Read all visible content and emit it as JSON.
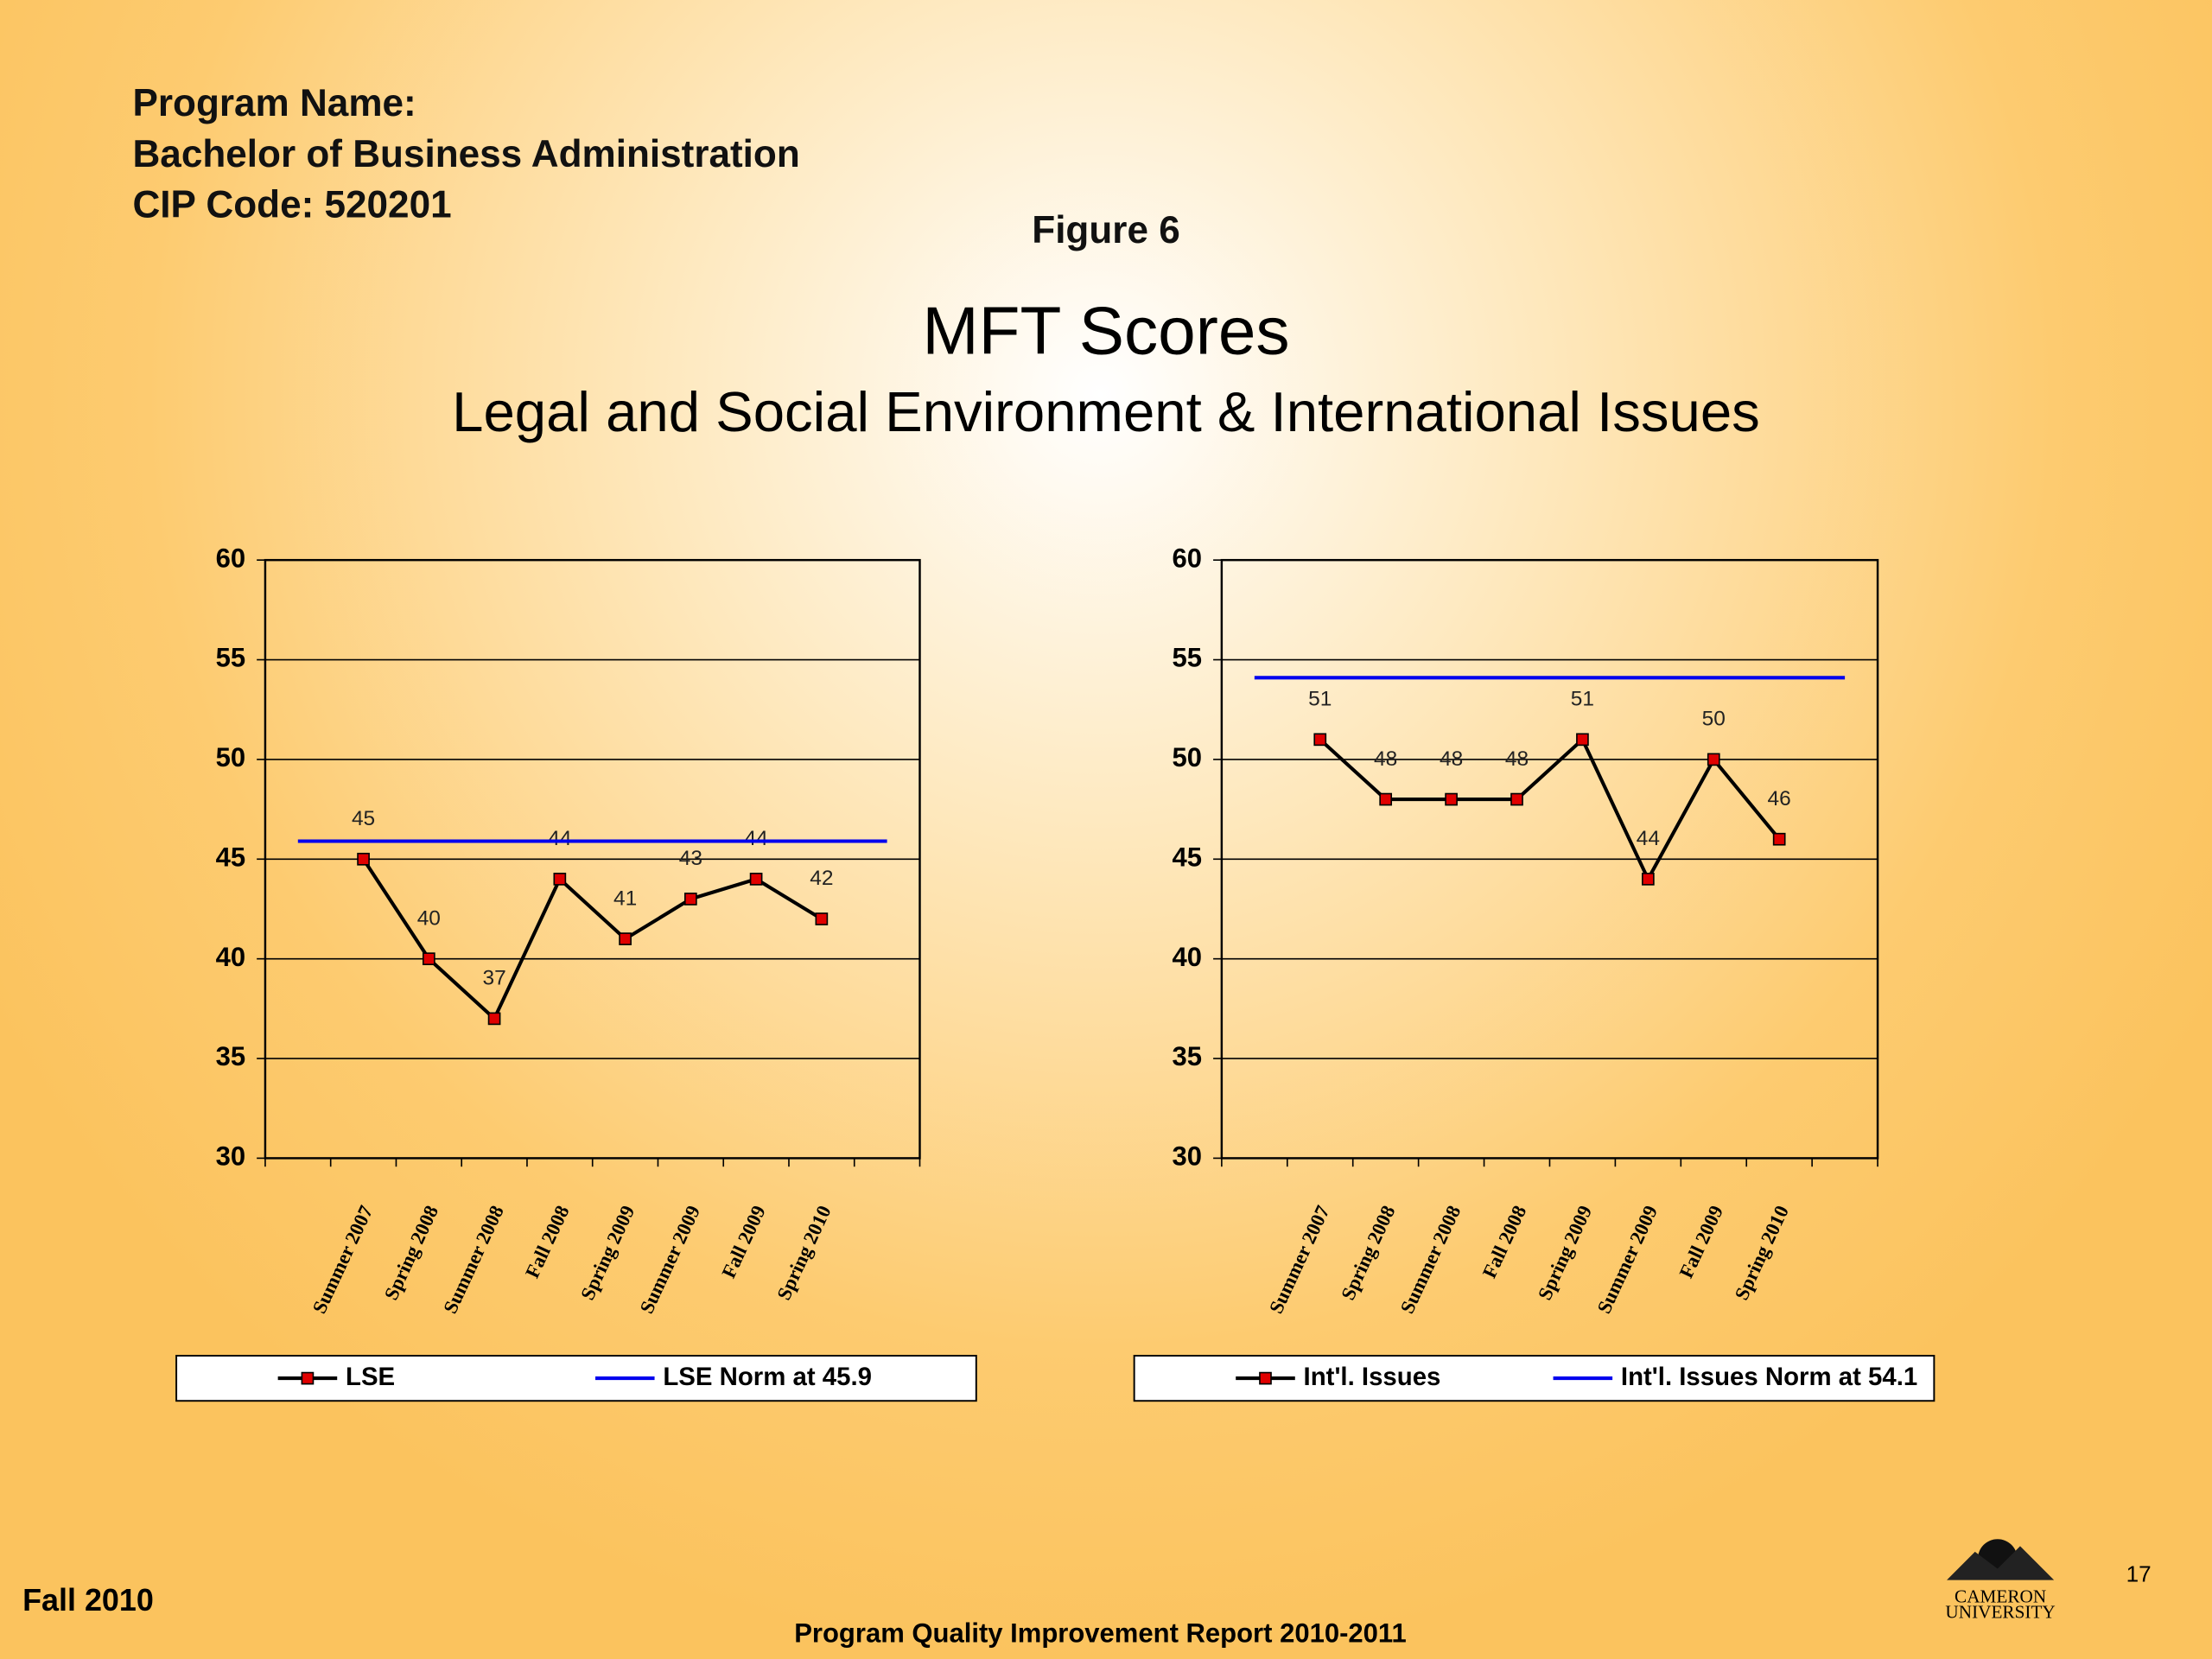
{
  "header": {
    "program_label": "Program Name:",
    "program": "Bachelor of Business Administration",
    "cip": "CIP Code: 520201",
    "figure": "Figure 6",
    "title": "MFT Scores",
    "subtitle": "Legal and Social Environment & International Issues"
  },
  "footer": {
    "term": "Fall 2010",
    "report": "Program Quality Improvement Report 2010-2011",
    "page": "17",
    "logo_top": "CAMERON",
    "logo_bottom": "UNIVERSITY"
  },
  "chart_data": [
    {
      "type": "line",
      "categories": [
        null,
        "Summer 2007",
        "Spring 2008",
        "Summer 2008",
        "Fall 2008",
        "Spring 2009",
        "Summer 2009",
        "Fall 2009",
        "Spring 2010",
        null
      ],
      "series": [
        {
          "name": "LSE",
          "color": "#000000",
          "marker_color": "#e00000",
          "marker": "square",
          "data_labels": true,
          "values": [
            null,
            45,
            40,
            37,
            44,
            41,
            43,
            44,
            42,
            null
          ]
        },
        {
          "name": "LSE Norm at 45.9",
          "color": "#0000ee",
          "values": [
            45.9,
            45.9,
            45.9,
            45.9,
            45.9,
            45.9,
            45.9,
            45.9,
            45.9,
            45.9
          ]
        }
      ],
      "ylim": [
        30,
        60
      ],
      "yticks": [
        30,
        35,
        40,
        45,
        50,
        55,
        60
      ],
      "grid": true,
      "legend": "bottom"
    },
    {
      "type": "line",
      "categories": [
        null,
        "Summer 2007",
        "Spring 2008",
        "Summer 2008",
        "Fall 2008",
        "Spring 2009",
        "Summer 2009",
        "Fall 2009",
        "Spring 2010",
        null
      ],
      "series": [
        {
          "name": "Int'l. Issues",
          "color": "#000000",
          "marker_color": "#e00000",
          "marker": "square",
          "data_labels": true,
          "values": [
            null,
            51,
            48,
            48,
            48,
            51,
            44,
            50,
            46,
            null
          ]
        },
        {
          "name": "Int'l. Issues Norm at 54.1",
          "color": "#0000ee",
          "values": [
            54.1,
            54.1,
            54.1,
            54.1,
            54.1,
            54.1,
            54.1,
            54.1,
            54.1,
            54.1
          ]
        }
      ],
      "ylim": [
        30,
        60
      ],
      "yticks": [
        30,
        35,
        40,
        45,
        50,
        55,
        60
      ],
      "grid": true,
      "legend": "bottom"
    }
  ]
}
